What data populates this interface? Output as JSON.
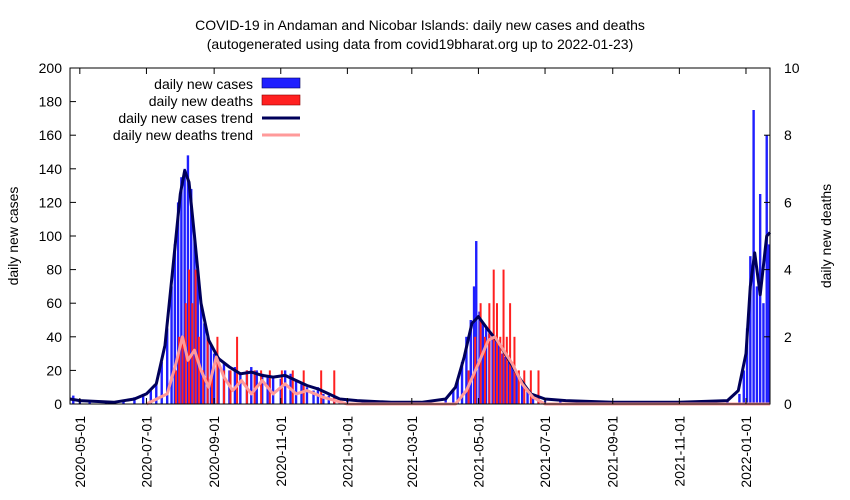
{
  "chart_data": {
    "type": "bar",
    "title": "COVID-19 in Andaman and Nicobar Islands: daily new cases and deaths",
    "subtitle": "(autogenerated using data from covid19bharat.org up to 2022-01-23)",
    "ylabel": "daily new cases",
    "y2label": "daily new deaths",
    "ylim": [
      0,
      200
    ],
    "y2lim": [
      0,
      10
    ],
    "yticks": [
      "0",
      "20",
      "40",
      "60",
      "80",
      "100",
      "120",
      "140",
      "160",
      "180",
      "200"
    ],
    "y2ticks": [
      "0",
      "2",
      "4",
      "6",
      "8",
      "10"
    ],
    "xlim": [
      "2020-04-22",
      "2022-01-23"
    ],
    "xticks": [
      "2020-05-01",
      "2020-07-01",
      "2020-09-01",
      "2020-11-01",
      "2021-01-01",
      "2021-03-01",
      "2021-05-01",
      "2021-07-01",
      "2021-09-01",
      "2021-11-01",
      "2022-01-01"
    ],
    "legend_position": "top-left",
    "colors": {
      "cases": "#1f1fff",
      "deaths": "#ff2020",
      "cases_trend": "#00005a",
      "deaths_trend": "#ff9a9a"
    },
    "series": [
      {
        "name": "daily new cases",
        "kind": "bar",
        "axis": "left",
        "points": [
          [
            "2020-04-25",
            5
          ],
          [
            "2020-05-01",
            3
          ],
          [
            "2020-05-10",
            1
          ],
          [
            "2020-05-25",
            1
          ],
          [
            "2020-06-10",
            2
          ],
          [
            "2020-06-20",
            4
          ],
          [
            "2020-06-28",
            6
          ],
          [
            "2020-07-05",
            8
          ],
          [
            "2020-07-10",
            12
          ],
          [
            "2020-07-15",
            25
          ],
          [
            "2020-07-20",
            45
          ],
          [
            "2020-07-24",
            70
          ],
          [
            "2020-07-27",
            95
          ],
          [
            "2020-07-30",
            120
          ],
          [
            "2020-08-02",
            135
          ],
          [
            "2020-08-05",
            140
          ],
          [
            "2020-08-08",
            148
          ],
          [
            "2020-08-11",
            128
          ],
          [
            "2020-08-14",
            100
          ],
          [
            "2020-08-17",
            80
          ],
          [
            "2020-08-20",
            60
          ],
          [
            "2020-08-23",
            48
          ],
          [
            "2020-08-26",
            40
          ],
          [
            "2020-08-29",
            35
          ],
          [
            "2020-09-01",
            30
          ],
          [
            "2020-09-05",
            28
          ],
          [
            "2020-09-10",
            25
          ],
          [
            "2020-09-15",
            20
          ],
          [
            "2020-09-20",
            22
          ],
          [
            "2020-09-25",
            18
          ],
          [
            "2020-10-01",
            20
          ],
          [
            "2020-10-05",
            22
          ],
          [
            "2020-10-10",
            20
          ],
          [
            "2020-10-15",
            18
          ],
          [
            "2020-10-20",
            17
          ],
          [
            "2020-10-25",
            16
          ],
          [
            "2020-11-01",
            15
          ],
          [
            "2020-11-05",
            20
          ],
          [
            "2020-11-10",
            18
          ],
          [
            "2020-11-15",
            14
          ],
          [
            "2020-11-20",
            12
          ],
          [
            "2020-11-25",
            10
          ],
          [
            "2020-12-01",
            8
          ],
          [
            "2020-12-05",
            10
          ],
          [
            "2020-12-10",
            6
          ],
          [
            "2020-12-15",
            5
          ],
          [
            "2020-12-20",
            4
          ],
          [
            "2020-12-25",
            3
          ],
          [
            "2021-01-01",
            2
          ],
          [
            "2021-01-15",
            2
          ],
          [
            "2021-02-01",
            1
          ],
          [
            "2021-02-15",
            1
          ],
          [
            "2021-03-01",
            1
          ],
          [
            "2021-03-15",
            2
          ],
          [
            "2021-04-01",
            3
          ],
          [
            "2021-04-08",
            8
          ],
          [
            "2021-04-12",
            15
          ],
          [
            "2021-04-16",
            25
          ],
          [
            "2021-04-20",
            40
          ],
          [
            "2021-04-24",
            50
          ],
          [
            "2021-04-27",
            70
          ],
          [
            "2021-04-29",
            97
          ],
          [
            "2021-05-02",
            55
          ],
          [
            "2021-05-05",
            48
          ],
          [
            "2021-05-08",
            45
          ],
          [
            "2021-05-11",
            42
          ],
          [
            "2021-05-14",
            40
          ],
          [
            "2021-05-17",
            38
          ],
          [
            "2021-05-20",
            35
          ],
          [
            "2021-05-23",
            30
          ],
          [
            "2021-05-26",
            28
          ],
          [
            "2021-05-29",
            25
          ],
          [
            "2021-06-01",
            22
          ],
          [
            "2021-06-05",
            18
          ],
          [
            "2021-06-10",
            12
          ],
          [
            "2021-06-15",
            8
          ],
          [
            "2021-06-20",
            5
          ],
          [
            "2021-06-25",
            3
          ],
          [
            "2021-07-01",
            2
          ],
          [
            "2021-07-15",
            2
          ],
          [
            "2021-08-01",
            1
          ],
          [
            "2021-08-15",
            2
          ],
          [
            "2021-09-01",
            1
          ],
          [
            "2021-09-15",
            1
          ],
          [
            "2021-10-01",
            1
          ],
          [
            "2021-10-15",
            1
          ],
          [
            "2021-11-01",
            1
          ],
          [
            "2021-11-15",
            1
          ],
          [
            "2021-12-01",
            1
          ],
          [
            "2021-12-15",
            2
          ],
          [
            "2021-12-26",
            6
          ],
          [
            "2021-12-30",
            20
          ],
          [
            "2022-01-02",
            45
          ],
          [
            "2022-01-05",
            88
          ],
          [
            "2022-01-08",
            175
          ],
          [
            "2022-01-11",
            70
          ],
          [
            "2022-01-14",
            125
          ],
          [
            "2022-01-17",
            60
          ],
          [
            "2022-01-20",
            160
          ],
          [
            "2022-01-22",
            95
          ]
        ]
      },
      {
        "name": "daily new deaths",
        "kind": "bar",
        "axis": "right",
        "points": [
          [
            "2020-07-28",
            1
          ],
          [
            "2020-07-31",
            2
          ],
          [
            "2020-08-03",
            2
          ],
          [
            "2020-08-06",
            3
          ],
          [
            "2020-08-09",
            4
          ],
          [
            "2020-08-12",
            3
          ],
          [
            "2020-08-15",
            4
          ],
          [
            "2020-08-18",
            2
          ],
          [
            "2020-08-22",
            1
          ],
          [
            "2020-08-26",
            2
          ],
          [
            "2020-08-30",
            1
          ],
          [
            "2020-09-04",
            2
          ],
          [
            "2020-09-10",
            1
          ],
          [
            "2020-09-16",
            1
          ],
          [
            "2020-09-22",
            2
          ],
          [
            "2020-10-01",
            1
          ],
          [
            "2020-10-08",
            1
          ],
          [
            "2020-10-14",
            1
          ],
          [
            "2020-10-22",
            1
          ],
          [
            "2020-11-02",
            1
          ],
          [
            "2020-11-12",
            1
          ],
          [
            "2020-11-22",
            1
          ],
          [
            "2020-12-08",
            1
          ],
          [
            "2020-12-20",
            1
          ],
          [
            "2021-04-22",
            1
          ],
          [
            "2021-04-28",
            2
          ],
          [
            "2021-05-03",
            3
          ],
          [
            "2021-05-07",
            2
          ],
          [
            "2021-05-11",
            3
          ],
          [
            "2021-05-15",
            4
          ],
          [
            "2021-05-18",
            3
          ],
          [
            "2021-05-21",
            2
          ],
          [
            "2021-05-24",
            4
          ],
          [
            "2021-05-27",
            2
          ],
          [
            "2021-05-30",
            3
          ],
          [
            "2021-06-03",
            2
          ],
          [
            "2021-06-07",
            1
          ],
          [
            "2021-06-12",
            1
          ],
          [
            "2021-06-18",
            1
          ],
          [
            "2021-06-25",
            1
          ]
        ]
      },
      {
        "name": "daily new cases trend",
        "kind": "line",
        "axis": "left",
        "points": [
          [
            "2020-04-22",
            3
          ],
          [
            "2020-05-01",
            2
          ],
          [
            "2020-06-01",
            1
          ],
          [
            "2020-06-20",
            3
          ],
          [
            "2020-07-01",
            6
          ],
          [
            "2020-07-10",
            12
          ],
          [
            "2020-07-18",
            35
          ],
          [
            "2020-07-25",
            80
          ],
          [
            "2020-08-01",
            125
          ],
          [
            "2020-08-05",
            139
          ],
          [
            "2020-08-09",
            132
          ],
          [
            "2020-08-14",
            100
          ],
          [
            "2020-08-20",
            60
          ],
          [
            "2020-08-27",
            38
          ],
          [
            "2020-09-05",
            27
          ],
          [
            "2020-09-15",
            22
          ],
          [
            "2020-09-25",
            18
          ],
          [
            "2020-10-05",
            19
          ],
          [
            "2020-10-15",
            17
          ],
          [
            "2020-10-25",
            16
          ],
          [
            "2020-11-05",
            17
          ],
          [
            "2020-11-15",
            14
          ],
          [
            "2020-11-25",
            11
          ],
          [
            "2020-12-05",
            9
          ],
          [
            "2020-12-15",
            6
          ],
          [
            "2020-12-25",
            3
          ],
          [
            "2021-01-10",
            2
          ],
          [
            "2021-02-10",
            1
          ],
          [
            "2021-03-10",
            1
          ],
          [
            "2021-04-01",
            3
          ],
          [
            "2021-04-10",
            10
          ],
          [
            "2021-04-18",
            28
          ],
          [
            "2021-04-25",
            48
          ],
          [
            "2021-05-01",
            52
          ],
          [
            "2021-05-10",
            44
          ],
          [
            "2021-05-20",
            36
          ],
          [
            "2021-05-30",
            25
          ],
          [
            "2021-06-08",
            15
          ],
          [
            "2021-06-18",
            6
          ],
          [
            "2021-07-01",
            3
          ],
          [
            "2021-07-20",
            2
          ],
          [
            "2021-09-01",
            1
          ],
          [
            "2021-11-01",
            1
          ],
          [
            "2021-12-15",
            2
          ],
          [
            "2021-12-25",
            8
          ],
          [
            "2022-01-01",
            30
          ],
          [
            "2022-01-05",
            70
          ],
          [
            "2022-01-09",
            90
          ],
          [
            "2022-01-14",
            65
          ],
          [
            "2022-01-20",
            100
          ],
          [
            "2022-01-23",
            102
          ]
        ]
      },
      {
        "name": "daily new deaths trend",
        "kind": "line",
        "axis": "right",
        "points": [
          [
            "2020-07-01",
            0
          ],
          [
            "2020-07-20",
            0.3
          ],
          [
            "2020-07-28",
            1.2
          ],
          [
            "2020-08-03",
            2.0
          ],
          [
            "2020-08-08",
            1.3
          ],
          [
            "2020-08-14",
            1.6
          ],
          [
            "2020-08-20",
            1.0
          ],
          [
            "2020-08-27",
            0.5
          ],
          [
            "2020-09-03",
            1.4
          ],
          [
            "2020-09-10",
            0.8
          ],
          [
            "2020-09-18",
            0.4
          ],
          [
            "2020-09-26",
            0.7
          ],
          [
            "2020-10-05",
            0.3
          ],
          [
            "2020-10-15",
            0.7
          ],
          [
            "2020-10-25",
            0.3
          ],
          [
            "2020-11-05",
            0.6
          ],
          [
            "2020-11-15",
            0.3
          ],
          [
            "2020-11-25",
            0.4
          ],
          [
            "2020-12-10",
            0.2
          ],
          [
            "2021-01-01",
            0
          ],
          [
            "2021-04-10",
            0
          ],
          [
            "2021-04-20",
            0.4
          ],
          [
            "2021-05-01",
            1.2
          ],
          [
            "2021-05-10",
            1.9
          ],
          [
            "2021-05-16",
            2.0
          ],
          [
            "2021-05-22",
            1.7
          ],
          [
            "2021-06-01",
            1.2
          ],
          [
            "2021-06-10",
            0.6
          ],
          [
            "2021-06-20",
            0.2
          ],
          [
            "2021-07-01",
            0
          ],
          [
            "2022-01-23",
            0
          ]
        ]
      }
    ]
  }
}
